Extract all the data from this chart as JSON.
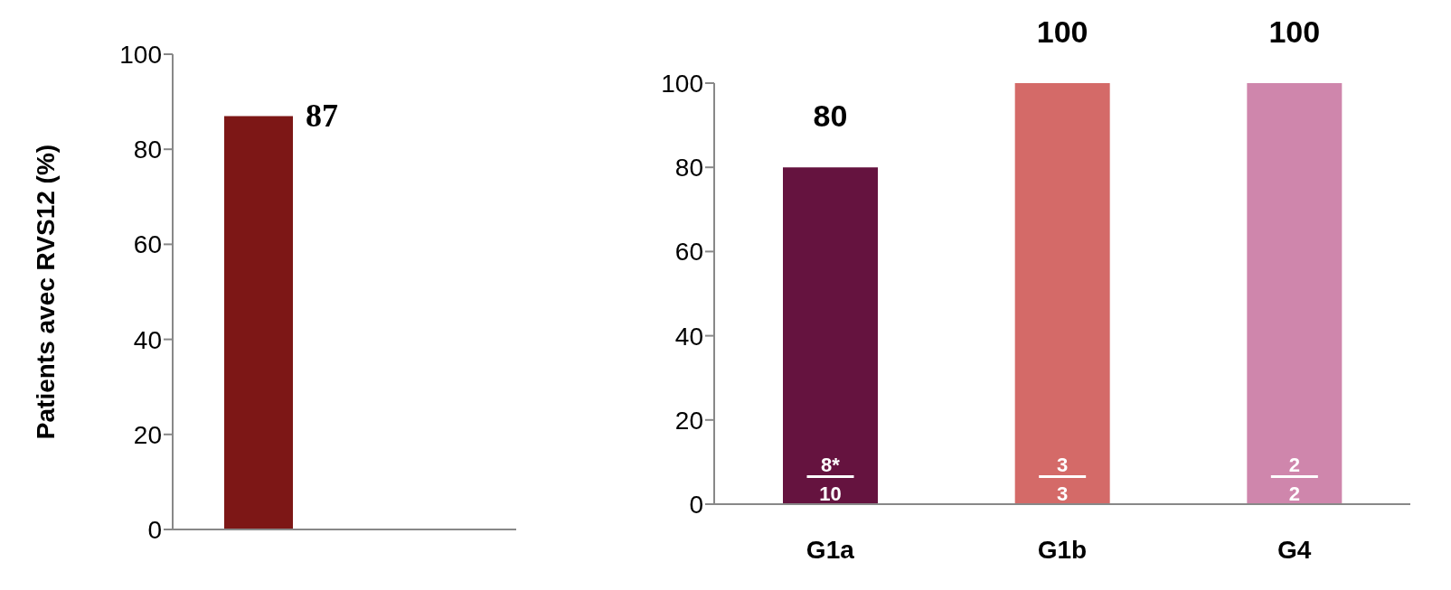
{
  "chart_data": [
    {
      "type": "bar",
      "ylabel": "Patients avec RVS12 (%)",
      "categories": [
        null,
        null
      ],
      "values": [
        87,
        null
      ],
      "color": "#7d1716",
      "ylim": [
        0,
        100
      ],
      "yticks": [
        0,
        20,
        40,
        60,
        80,
        100
      ],
      "grid": false,
      "legend": false,
      "data_labels": true
    },
    {
      "type": "bar",
      "categories": [
        "G1a",
        "G1b",
        "G4"
      ],
      "values": [
        80,
        100,
        100
      ],
      "colors": [
        "#65133f",
        "#d46a68",
        "#cf86ac"
      ],
      "ylim": [
        0,
        100
      ],
      "yticks": [
        0,
        20,
        40,
        60,
        80,
        100
      ],
      "grid": false,
      "legend": false,
      "data_labels": true,
      "annotations": [
        "8*",
        "10",
        "3",
        "3",
        "2",
        "2"
      ]
    }
  ]
}
